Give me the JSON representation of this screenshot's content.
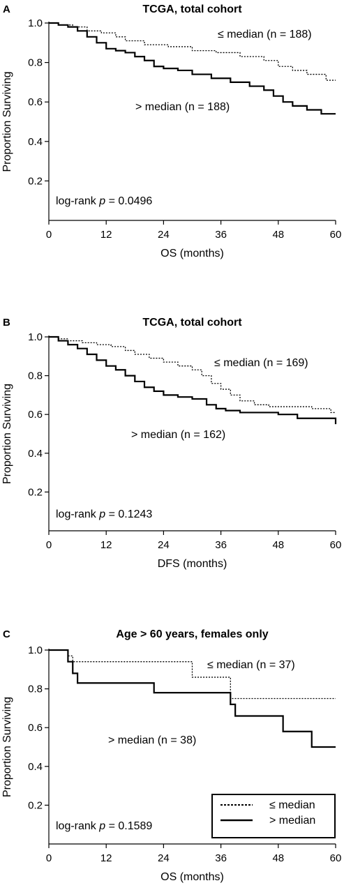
{
  "chart_data": [
    {
      "panel": "A",
      "type": "line",
      "title": "TCGA, total cohort",
      "xlabel": "OS (months)",
      "ylabel": "Proportion Surviving",
      "xlim": [
        0,
        60
      ],
      "ylim": [
        0,
        1.0
      ],
      "xticks": [
        "0",
        "12",
        "24",
        "36",
        "48",
        "60"
      ],
      "yticks": [
        "0.2",
        "0.4",
        "0.6",
        "0.8",
        "1.0"
      ],
      "annotation": {
        "prefix": "log-rank ",
        "p": "p",
        "suffix": " = 0.0496"
      },
      "series": [
        {
          "name": "≤ median (n = 188)",
          "style": "dotted",
          "x": [
            0,
            2,
            5,
            8,
            11,
            14,
            16,
            20,
            25,
            30,
            35,
            40,
            45,
            48,
            51,
            54,
            58,
            60
          ],
          "y": [
            1.0,
            0.99,
            0.98,
            0.96,
            0.95,
            0.93,
            0.91,
            0.89,
            0.88,
            0.86,
            0.85,
            0.83,
            0.81,
            0.78,
            0.76,
            0.74,
            0.71,
            0.71
          ]
        },
        {
          "name": "> median (n = 188)",
          "style": "solid",
          "x": [
            0,
            2,
            4,
            6,
            8,
            10,
            12,
            14,
            16,
            18,
            20,
            22,
            24,
            27,
            30,
            34,
            38,
            42,
            45,
            47,
            49,
            51,
            54,
            57,
            60
          ],
          "y": [
            1.0,
            0.99,
            0.98,
            0.96,
            0.93,
            0.9,
            0.87,
            0.86,
            0.85,
            0.83,
            0.81,
            0.78,
            0.77,
            0.76,
            0.74,
            0.72,
            0.7,
            0.68,
            0.66,
            0.63,
            0.6,
            0.58,
            0.56,
            0.54,
            0.54
          ]
        }
      ]
    },
    {
      "panel": "B",
      "type": "line",
      "title": "TCGA, total cohort",
      "xlabel": "DFS (months)",
      "ylabel": "Proportion Surviving",
      "xlim": [
        0,
        60
      ],
      "ylim": [
        0,
        1.0
      ],
      "xticks": [
        "0",
        "12",
        "24",
        "36",
        "48",
        "60"
      ],
      "yticks": [
        "0.2",
        "0.4",
        "0.6",
        "0.8",
        "1.0"
      ],
      "annotation": {
        "prefix": "log-rank ",
        "p": "p",
        "suffix": " = 0.1243"
      },
      "series": [
        {
          "name": "≤ median (n = 169)",
          "style": "dotted",
          "x": [
            0,
            2,
            4,
            7,
            10,
            13,
            16,
            18,
            21,
            24,
            27,
            30,
            32,
            34,
            36,
            38,
            40,
            43,
            46,
            50,
            55,
            59,
            60
          ],
          "y": [
            1.0,
            0.99,
            0.98,
            0.97,
            0.96,
            0.95,
            0.93,
            0.91,
            0.89,
            0.87,
            0.85,
            0.83,
            0.8,
            0.76,
            0.73,
            0.7,
            0.67,
            0.65,
            0.64,
            0.64,
            0.63,
            0.61,
            0.61
          ]
        },
        {
          "name": "> median (n = 162)",
          "style": "solid",
          "x": [
            0,
            2,
            4,
            6,
            8,
            10,
            12,
            14,
            16,
            18,
            20,
            22,
            24,
            27,
            30,
            33,
            35,
            37,
            40,
            44,
            48,
            52,
            55,
            59,
            60
          ],
          "y": [
            1.0,
            0.98,
            0.96,
            0.94,
            0.91,
            0.88,
            0.85,
            0.83,
            0.8,
            0.77,
            0.74,
            0.72,
            0.7,
            0.69,
            0.68,
            0.65,
            0.63,
            0.62,
            0.61,
            0.61,
            0.6,
            0.58,
            0.58,
            0.58,
            0.55
          ]
        }
      ]
    },
    {
      "panel": "C",
      "type": "line",
      "title": "Age > 60 years, females only",
      "xlabel": "OS (months)",
      "ylabel": "Proportion Surviving",
      "xlim": [
        0,
        60
      ],
      "ylim": [
        0,
        1.0
      ],
      "xticks": [
        "0",
        "12",
        "24",
        "36",
        "48",
        "60"
      ],
      "yticks": [
        "0.2",
        "0.4",
        "0.6",
        "0.8",
        "1.0"
      ],
      "annotation": {
        "prefix": "log-rank ",
        "p": "p",
        "suffix": " = 0.1589"
      },
      "legend": {
        "placement": "bottom-right",
        "entries": [
          "≤ median",
          "> median"
        ]
      },
      "series": [
        {
          "name": "≤ median (n = 37)",
          "style": "dotted",
          "x": [
            0,
            4,
            5,
            30,
            38,
            60
          ],
          "y": [
            1.0,
            0.97,
            0.94,
            0.86,
            0.75,
            0.75
          ]
        },
        {
          "name": "> median (n = 38)",
          "style": "solid",
          "x": [
            0,
            4,
            5,
            6,
            22,
            38,
            39,
            49,
            55,
            60
          ],
          "y": [
            1.0,
            0.94,
            0.88,
            0.83,
            0.78,
            0.72,
            0.66,
            0.58,
            0.5,
            0.5
          ]
        }
      ]
    }
  ]
}
